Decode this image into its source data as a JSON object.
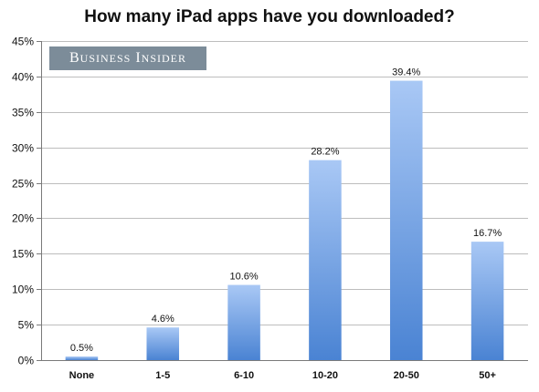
{
  "chart_data": {
    "type": "bar",
    "title": "How many iPad apps have you downloaded?",
    "categories": [
      "None",
      "1-5",
      "6-10",
      "10-20",
      "20-50",
      "50+"
    ],
    "values": [
      0.5,
      4.6,
      10.6,
      28.2,
      39.4,
      16.7
    ],
    "value_labels": [
      "0.5%",
      "4.6%",
      "10.6%",
      "28.2%",
      "39.4%",
      "16.7%"
    ],
    "ylim": [
      0,
      45
    ],
    "yticks": [
      0,
      5,
      10,
      15,
      20,
      25,
      30,
      35,
      40,
      45
    ],
    "ytick_labels": [
      "0%",
      "5%",
      "10%",
      "15%",
      "20%",
      "25%",
      "30%",
      "35%",
      "40%",
      "45%"
    ],
    "grid": true,
    "xlabel": "",
    "ylabel": "",
    "bar_color_top": "#a9c8f5",
    "bar_color_bottom": "#4a83d3"
  },
  "watermark": {
    "text": "BUSINESS INSIDER"
  }
}
